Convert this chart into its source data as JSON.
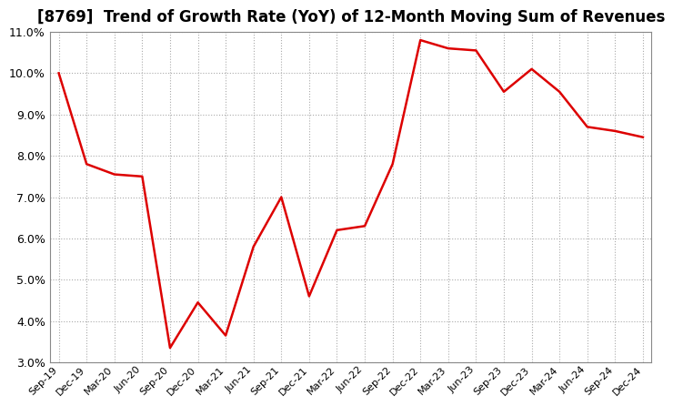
{
  "title": "[8769]  Trend of Growth Rate (YoY) of 12-Month Moving Sum of Revenues",
  "x_labels": [
    "Sep-19",
    "Dec-19",
    "Mar-20",
    "Jun-20",
    "Sep-20",
    "Dec-20",
    "Mar-21",
    "Jun-21",
    "Sep-21",
    "Dec-21",
    "Mar-22",
    "Jun-22",
    "Sep-22",
    "Dec-22",
    "Mar-23",
    "Jun-23",
    "Sep-23",
    "Dec-23",
    "Mar-24",
    "Jun-24",
    "Sep-24",
    "Dec-24"
  ],
  "y_values": [
    10.0,
    7.8,
    7.55,
    7.5,
    3.35,
    4.45,
    3.65,
    5.8,
    7.0,
    4.6,
    6.2,
    6.3,
    7.8,
    10.8,
    10.6,
    10.55,
    9.55,
    10.1,
    9.55,
    8.7,
    8.6,
    8.45
  ],
  "line_color": "#dd0000",
  "bg_color": "#ffffff",
  "plot_bg_color": "#ffffff",
  "ylim": [
    3.0,
    11.0
  ],
  "yticks": [
    3.0,
    4.0,
    5.0,
    6.0,
    7.0,
    8.0,
    9.0,
    10.0,
    11.0
  ],
  "title_fontsize": 12,
  "grid_color": "#aaaaaa",
  "line_width": 1.8,
  "box_color": "#888888"
}
